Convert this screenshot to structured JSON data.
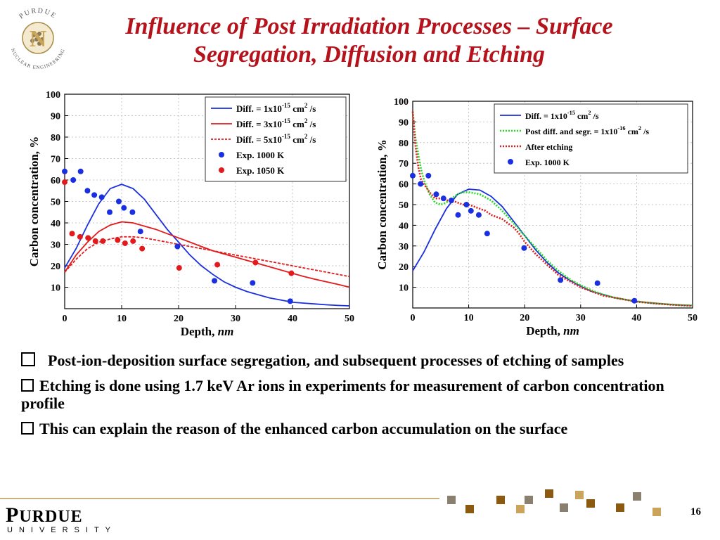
{
  "header": {
    "title": "Influence of Post Irradiation Processes – Surface Segregation, Diffusion and Etching",
    "logo_top_text": "PURDUE",
    "logo_bottom_text": "NUCLEAR ENGINEERING",
    "logo_letter": "N"
  },
  "chart_data": [
    {
      "type": "line",
      "xlabel": "Depth, nm",
      "ylabel": "Carbon concentration, %",
      "xlim": [
        0,
        50
      ],
      "ylim": [
        0,
        100
      ],
      "xticks": [
        0,
        10,
        20,
        30,
        40,
        50
      ],
      "yticks": [
        10,
        20,
        30,
        40,
        50,
        60,
        70,
        80,
        90,
        100
      ],
      "grid": true,
      "legend_position": "top-right",
      "series": [
        {
          "name": "Diff. = 1x10^-15 cm^2/s",
          "kind": "line",
          "color": "#1a2fe0",
          "dash": "solid",
          "x": [
            0,
            2,
            4,
            6,
            8,
            10,
            12,
            14,
            16,
            18,
            20,
            22,
            24,
            26,
            28,
            30,
            32,
            34,
            36,
            38,
            40,
            42,
            44,
            46,
            48,
            50
          ],
          "y": [
            19,
            28,
            39,
            49,
            56,
            58,
            56,
            51,
            44,
            37,
            31,
            25,
            20,
            16,
            12.5,
            10,
            8,
            6.5,
            5,
            4,
            3,
            2.6,
            2.2,
            1.8,
            1.5,
            1.3
          ]
        },
        {
          "name": "Diff. = 3x10^-15 cm^2/s",
          "kind": "line",
          "color": "#e31a1c",
          "dash": "solid",
          "x": [
            0,
            2,
            4,
            6,
            8,
            10,
            12,
            14,
            16,
            18,
            20,
            22,
            24,
            26,
            28,
            30,
            32,
            34,
            36,
            38,
            40,
            42,
            44,
            46,
            48,
            50
          ],
          "y": [
            17,
            25,
            31,
            36,
            39,
            40.5,
            40,
            38.5,
            37,
            35,
            33,
            31,
            29,
            27,
            25.5,
            24,
            22.5,
            21,
            19.5,
            18,
            16.5,
            15,
            13.7,
            12.5,
            11.3,
            10
          ]
        },
        {
          "name": "Diff. = 5x10^-15 cm^2/s",
          "kind": "line",
          "color": "#e31a1c",
          "dash": "dashed",
          "x": [
            0,
            2,
            4,
            6,
            8,
            10,
            12,
            14,
            16,
            18,
            20,
            22,
            24,
            26,
            28,
            30,
            32,
            34,
            36,
            38,
            40,
            42,
            44,
            46,
            48,
            50
          ],
          "y": [
            17,
            23,
            28,
            31,
            32.5,
            33.5,
            33.5,
            33,
            32,
            31,
            30,
            29,
            28,
            27,
            26,
            25,
            24,
            23,
            22,
            21,
            20,
            19,
            18,
            17,
            16,
            15
          ]
        },
        {
          "name": "Exp. 1000 K",
          "kind": "scatter",
          "color": "#1a2fe0",
          "x": [
            0,
            1.5,
            2.8,
            4,
            5.2,
            6.5,
            7.9,
            9.5,
            10.4,
            11.9,
            13.3,
            19.8,
            26.3,
            33,
            39.6
          ],
          "y": [
            64,
            60,
            64,
            55,
            53,
            52,
            45,
            50,
            47,
            45,
            36,
            29,
            13,
            12,
            3.5
          ]
        },
        {
          "name": "Exp. 1050 K",
          "kind": "scatter",
          "color": "#e31a1c",
          "x": [
            0,
            1.3,
            2.7,
            4.1,
            5.4,
            6.7,
            9.3,
            10.6,
            12,
            13.6,
            20.1,
            26.8,
            33.5,
            39.8
          ],
          "y": [
            59,
            35,
            33.5,
            33,
            31.5,
            31.5,
            32,
            30.5,
            31.5,
            28,
            19,
            20.5,
            21.5,
            16.5
          ]
        }
      ]
    },
    {
      "type": "line",
      "xlabel": "Depth, nm",
      "ylabel": "Carbon concentration, %",
      "xlim": [
        0,
        50
      ],
      "ylim": [
        0,
        100
      ],
      "xticks": [
        0,
        10,
        20,
        30,
        40,
        50
      ],
      "yticks": [
        10,
        20,
        30,
        40,
        50,
        60,
        70,
        80,
        90,
        100
      ],
      "grid": true,
      "legend_position": "top-right",
      "series": [
        {
          "name": "Diff. = 1x10^-15 cm^2/s",
          "kind": "line",
          "color": "#1a2fe0",
          "dash": "solid",
          "x": [
            0,
            2,
            4,
            6,
            8,
            10,
            12,
            14,
            16,
            18,
            20,
            22,
            24,
            26,
            28,
            30,
            32,
            34,
            36,
            38,
            40,
            42,
            44,
            46,
            48,
            50
          ],
          "y": [
            18,
            27,
            38,
            48,
            55,
            57.5,
            57,
            54,
            49,
            42,
            35,
            28,
            22,
            17,
            13.5,
            10.5,
            8,
            6.5,
            5,
            4,
            3.2,
            2.6,
            2.1,
            1.7,
            1.4,
            1.2
          ]
        },
        {
          "name": "Post diff. and segr. = 1x10^-16 cm^2/s",
          "kind": "line",
          "color": "#22dd22",
          "dash": "dotted",
          "x": [
            0,
            0.5,
            1,
            1.5,
            2,
            3,
            4,
            5,
            6,
            7,
            8,
            9,
            10,
            11,
            12,
            14,
            16,
            18,
            20,
            22,
            24,
            26,
            28,
            30,
            32,
            34,
            36,
            38,
            40,
            42,
            44,
            46,
            48,
            50
          ],
          "y": [
            95,
            82,
            74,
            67,
            62,
            55,
            51,
            50,
            51,
            53,
            55,
            56,
            56,
            55.5,
            55,
            52,
            47,
            41,
            35,
            29,
            23,
            18,
            14,
            11,
            8.5,
            6.5,
            5,
            4,
            3.2,
            2.6,
            2.1,
            1.7,
            1.4,
            1.2
          ]
        },
        {
          "name": "After etching",
          "kind": "line",
          "color": "#e31a1c",
          "dash": "dotted",
          "x": [
            0,
            0.5,
            1,
            1.5,
            2,
            3,
            4,
            5,
            6,
            7,
            8,
            9,
            10,
            11,
            12,
            13,
            14,
            15,
            16,
            17,
            18,
            19,
            20,
            22,
            24,
            26,
            28,
            30,
            32,
            34,
            36,
            38,
            40,
            42,
            44,
            46,
            48,
            50
          ],
          "y": [
            95,
            78,
            68,
            62,
            60,
            56,
            53,
            53,
            52,
            52,
            51,
            50,
            50,
            49,
            48,
            47,
            45,
            44,
            43,
            41,
            39,
            36,
            32,
            26,
            21,
            16,
            13,
            10,
            8,
            6,
            5,
            4,
            3,
            2.5,
            2,
            1.6,
            1.3,
            1
          ]
        },
        {
          "name": "Exp. 1000 K",
          "kind": "scatter",
          "color": "#1a2fe0",
          "x": [
            0,
            1.4,
            2.8,
            4.2,
            5.5,
            6.9,
            8.1,
            9.6,
            10.4,
            11.8,
            13.3,
            19.9,
            26.4,
            33,
            39.6
          ],
          "y": [
            64,
            60,
            64,
            55,
            53,
            52,
            45,
            50,
            47,
            45,
            36,
            29,
            13.5,
            12,
            3.5
          ]
        }
      ]
    }
  ],
  "bullets": [
    "Post-ion-deposition surface segregation, and subsequent processes of etching of samples",
    "Etching is done using 1.7 keV Ar ions in experiments for measurement of carbon concentration profile",
    "This can explain the reason of the enhanced carbon accumulation on the surface"
  ],
  "footer": {
    "purdue_first": "P",
    "purdue_rest": "URDUE",
    "university": "UNIVERSITY",
    "page_number": "16",
    "colors": {
      "gold": "#c9a45a",
      "brown": "#8b5a10",
      "gray": "#8a8070",
      "line": "#c9b27c"
    }
  }
}
